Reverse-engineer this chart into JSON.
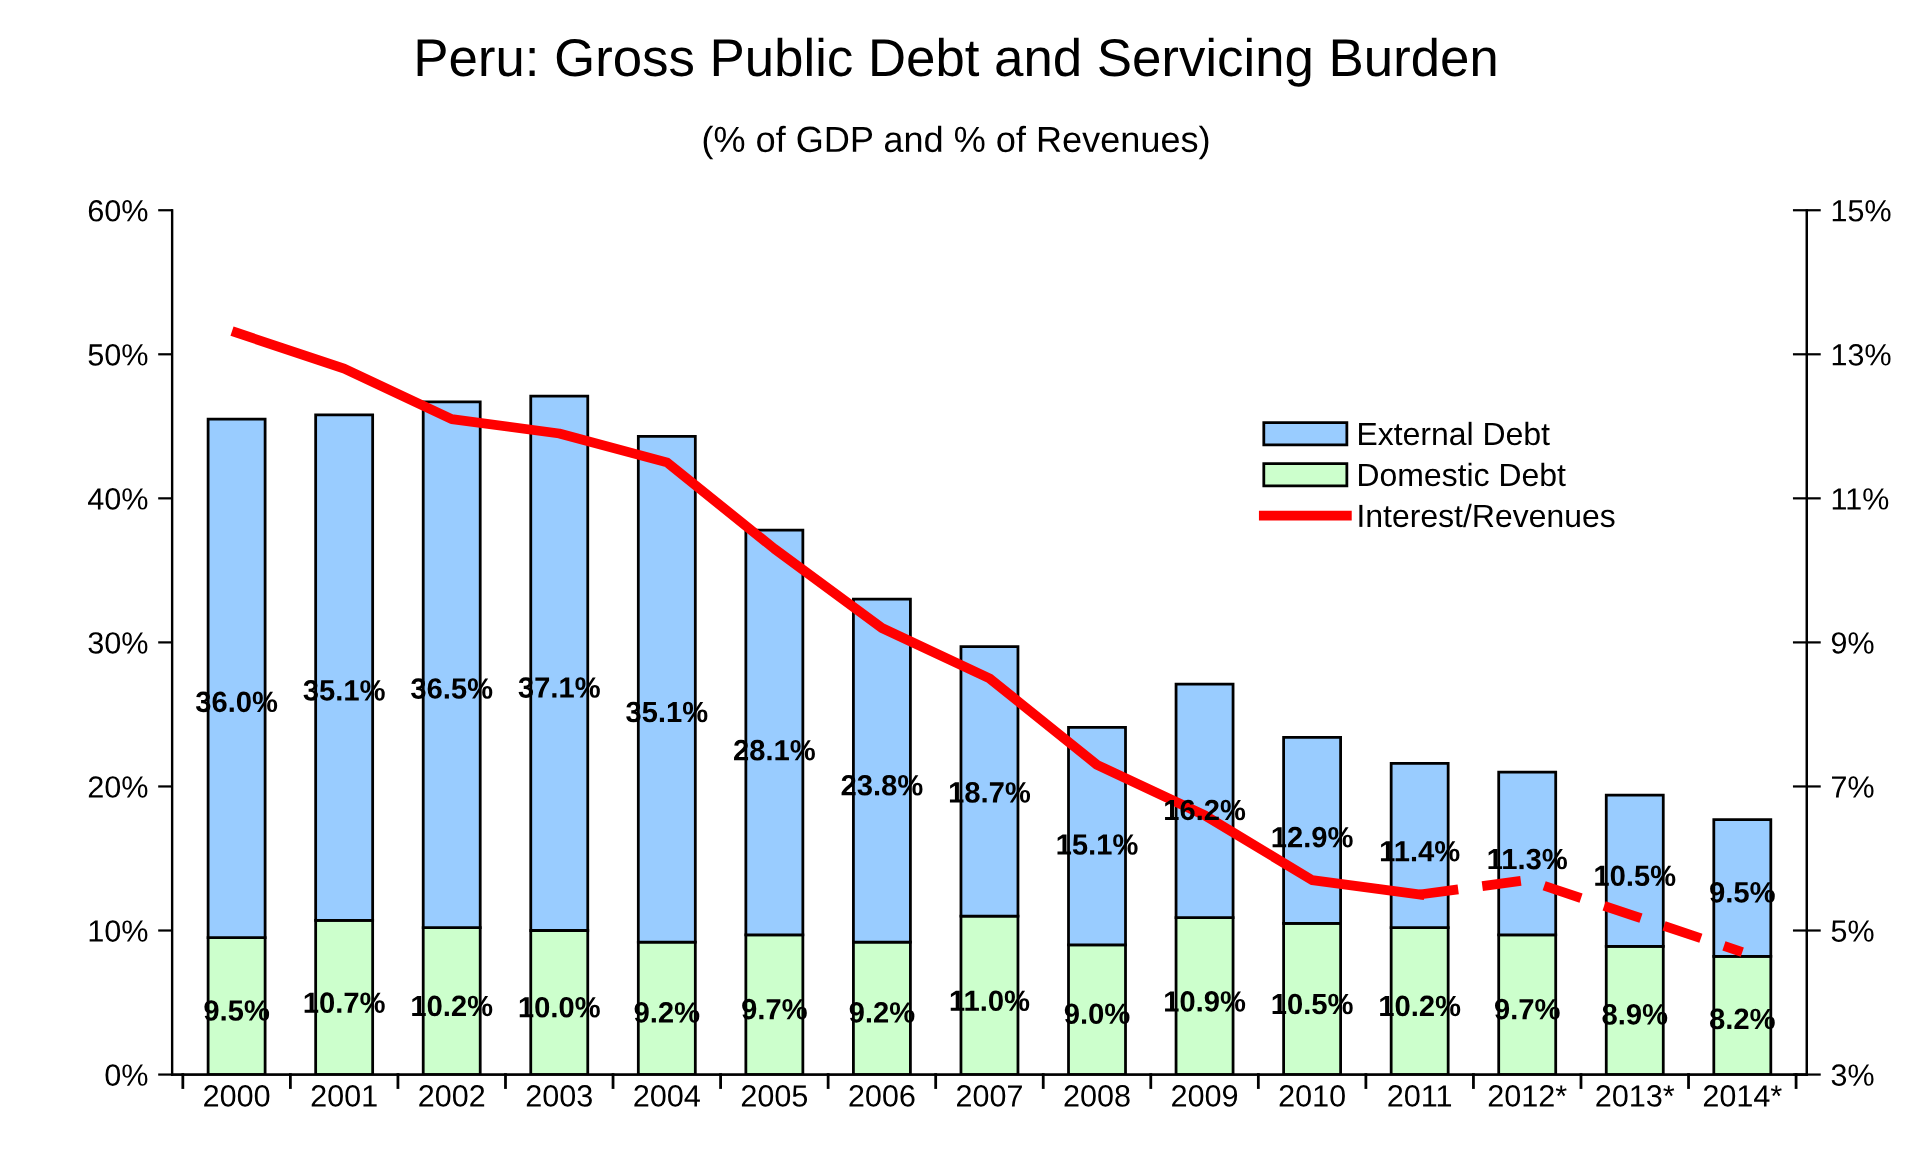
{
  "chart_data": {
    "type": "bar",
    "title": "Peru: Gross Public Debt and Servicing Burden",
    "subtitle": "(% of GDP and % of Revenues)",
    "categories": [
      "2000",
      "2001",
      "2002",
      "2003",
      "2004",
      "2005",
      "2006",
      "2007",
      "2008",
      "2009",
      "2010",
      "2011",
      "2012*",
      "2013*",
      "2014*"
    ],
    "stacked": true,
    "legend": "right",
    "grid": false,
    "ylim": [
      0,
      60
    ],
    "yticks": [
      {
        "value": 0,
        "label": "0%"
      },
      {
        "value": 10,
        "label": "10%"
      },
      {
        "value": 20,
        "label": "20%"
      },
      {
        "value": 30,
        "label": "30%"
      },
      {
        "value": 40,
        "label": "40%"
      },
      {
        "value": 50,
        "label": "50%"
      },
      {
        "value": 60,
        "label": "60%"
      }
    ],
    "y2lim": [
      3,
      15
    ],
    "y2ticks": [
      {
        "value": 3,
        "label": "3%"
      },
      {
        "value": 5,
        "label": "5%"
      },
      {
        "value": 7,
        "label": "7%"
      },
      {
        "value": 9,
        "label": "9%"
      },
      {
        "value": 11,
        "label": "11%"
      },
      {
        "value": 13,
        "label": "13%"
      },
      {
        "value": 15,
        "label": "15%"
      }
    ],
    "series": [
      {
        "name": "Domestic Debt",
        "color": "#ccffcc",
        "values": [
          9.5,
          10.7,
          10.2,
          10.0,
          9.2,
          9.7,
          9.2,
          11.0,
          9.0,
          10.9,
          10.5,
          10.2,
          9.7,
          8.9,
          8.2
        ],
        "value_labels": [
          "9.5%",
          "10.7%",
          "10.2%",
          "10.0%",
          "9.2%",
          "9.7%",
          "9.2%",
          "11.0%",
          "9.0%",
          "10.9%",
          "10.5%",
          "10.2%",
          "9.7%",
          "8.9%",
          "8.2%"
        ]
      },
      {
        "name": "External Debt",
        "color": "#99ccff",
        "values": [
          36.0,
          35.1,
          36.5,
          37.1,
          35.1,
          28.1,
          23.8,
          18.7,
          15.1,
          16.2,
          12.9,
          11.4,
          11.3,
          10.5,
          9.5
        ],
        "value_labels": [
          "36.0%",
          "35.1%",
          "36.5%",
          "37.1%",
          "35.1%",
          "28.1%",
          "23.8%",
          "18.7%",
          "15.1%",
          "16.2%",
          "12.9%",
          "11.4%",
          "11.3%",
          "10.5%",
          "9.5%"
        ]
      },
      {
        "name": "Interest/Revenues",
        "type": "line",
        "axis": "y2",
        "line_style": "solid",
        "color": "#ff0000",
        "values": [
          13.3,
          12.8,
          12.1,
          11.9,
          11.5,
          10.3,
          9.2,
          8.5,
          7.3,
          6.6,
          5.7,
          5.5,
          null,
          null,
          null
        ]
      },
      {
        "type": "line",
        "axis": "y2",
        "line_style": "dashed",
        "color": "#ff0000",
        "values": [
          null,
          null,
          null,
          null,
          null,
          null,
          null,
          null,
          null,
          null,
          null,
          5.5,
          5.7,
          5.2,
          4.7
        ]
      }
    ]
  }
}
